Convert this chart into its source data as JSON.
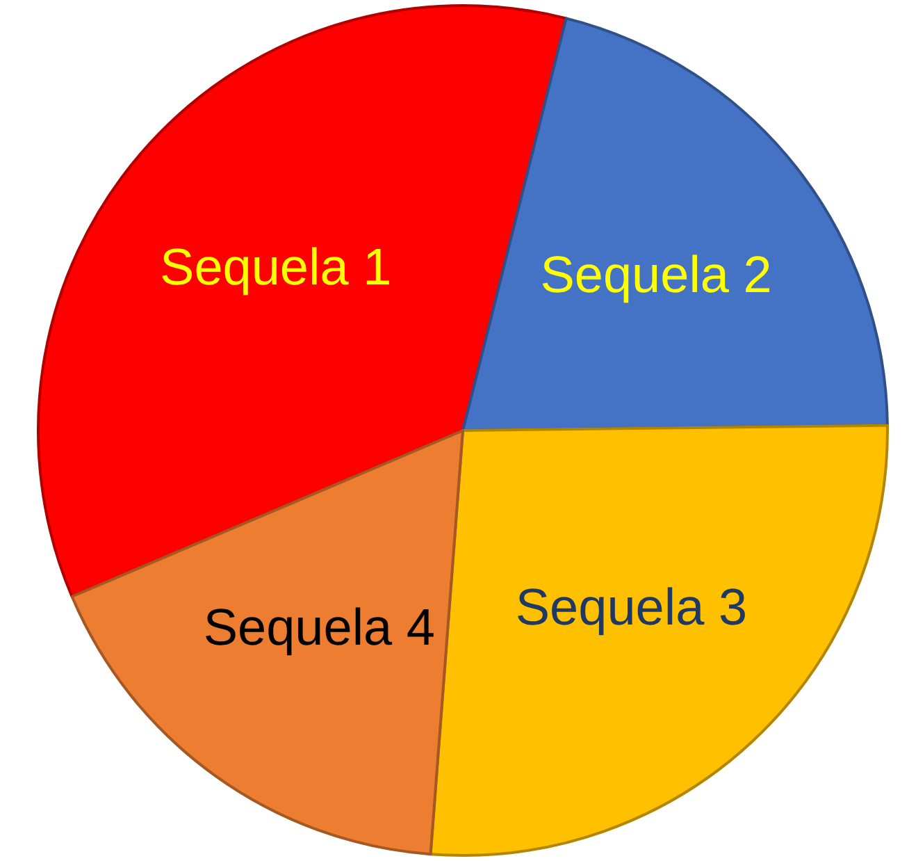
{
  "chart_data": {
    "type": "pie",
    "categories": [
      "Sequela 1",
      "Sequela 2",
      "Sequela 3",
      "Sequela 4"
    ],
    "values": [
      35.3,
      20.9,
      26.4,
      17.4
    ],
    "colors": [
      "#ff0000",
      "#4472c4",
      "#ffc000",
      "#ed7d31"
    ],
    "legend": false
  }
}
